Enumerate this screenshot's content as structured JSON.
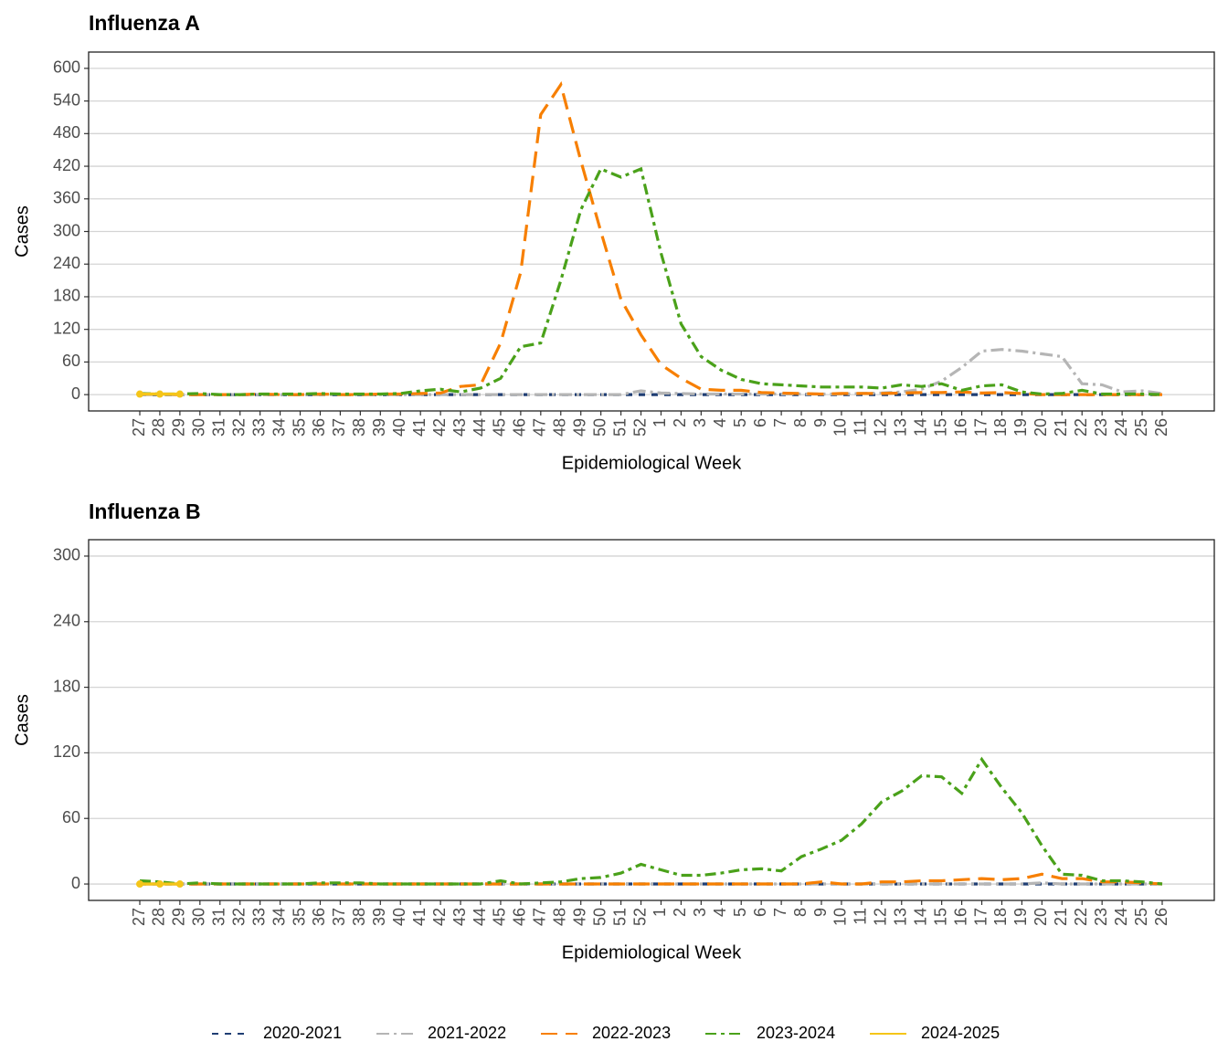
{
  "chart_data": [
    {
      "type": "line",
      "title": "Influenza A",
      "xlabel": "Epidemiological Week",
      "ylabel": "Cases",
      "categories": [
        "27",
        "28",
        "29",
        "30",
        "31",
        "32",
        "33",
        "34",
        "35",
        "36",
        "37",
        "38",
        "39",
        "40",
        "41",
        "42",
        "43",
        "44",
        "45",
        "46",
        "47",
        "48",
        "49",
        "50",
        "51",
        "52",
        "1",
        "2",
        "3",
        "4",
        "5",
        "6",
        "7",
        "8",
        "9",
        "10",
        "11",
        "12",
        "13",
        "14",
        "15",
        "16",
        "17",
        "18",
        "19",
        "20",
        "21",
        "22",
        "23",
        "24",
        "25",
        "26"
      ],
      "ylim": [
        -30,
        630
      ],
      "yticks": [
        0,
        60,
        120,
        180,
        240,
        300,
        360,
        420,
        480,
        540,
        600
      ],
      "grid": true,
      "series": [
        {
          "name": "2020-2021",
          "color": "#1f3e73",
          "linestyle": "dashed",
          "values": [
            0,
            0,
            0,
            0,
            0,
            0,
            0,
            0,
            0,
            0,
            0,
            0,
            0,
            0,
            0,
            0,
            0,
            0,
            0,
            0,
            0,
            0,
            0,
            0,
            0,
            0,
            0,
            0,
            0,
            0,
            0,
            0,
            0,
            0,
            0,
            0,
            0,
            0,
            0,
            0,
            0,
            0,
            0,
            0,
            0,
            0,
            0,
            0,
            0,
            0,
            0,
            0
          ]
        },
        {
          "name": "2021-2022",
          "color": "#b5b5b5",
          "linestyle": "dotdash",
          "values": [
            0,
            0,
            0,
            0,
            0,
            0,
            0,
            0,
            0,
            0,
            0,
            0,
            0,
            0,
            0,
            0,
            0,
            0,
            0,
            0,
            0,
            0,
            0,
            0,
            0,
            7,
            3,
            2,
            1,
            1,
            1,
            1,
            1,
            1,
            1,
            1,
            2,
            3,
            5,
            10,
            25,
            50,
            80,
            83,
            80,
            75,
            70,
            20,
            18,
            5,
            7,
            2
          ]
        },
        {
          "name": "2022-2023",
          "color": "#f77f00",
          "linestyle": "longdash",
          "values": [
            1,
            1,
            0,
            0,
            0,
            0,
            1,
            0,
            0,
            1,
            0,
            0,
            1,
            1,
            2,
            3,
            15,
            18,
            95,
            225,
            515,
            570,
            430,
            300,
            175,
            110,
            55,
            30,
            10,
            8,
            8,
            4,
            3,
            2,
            1,
            2,
            2,
            2,
            3,
            4,
            4,
            5,
            3,
            4,
            2,
            0,
            0,
            0,
            0,
            0,
            0,
            0
          ]
        },
        {
          "name": "2023-2024",
          "color": "#4aa11a",
          "linestyle": "twodash",
          "values": [
            2,
            1,
            1,
            2,
            0,
            0,
            1,
            1,
            1,
            2,
            1,
            1,
            1,
            2,
            7,
            10,
            5,
            12,
            30,
            88,
            95,
            210,
            340,
            415,
            400,
            415,
            260,
            130,
            70,
            45,
            28,
            20,
            18,
            16,
            14,
            14,
            14,
            12,
            18,
            15,
            20,
            8,
            16,
            18,
            5,
            1,
            2,
            8,
            1,
            1,
            1,
            0
          ]
        },
        {
          "name": "2024-2025",
          "color": "#f5c518",
          "linestyle": "solid",
          "markers": true,
          "values": [
            1,
            1,
            1,
            null,
            null,
            null,
            null,
            null,
            null,
            null,
            null,
            null,
            null,
            null,
            null,
            null,
            null,
            null,
            null,
            null,
            null,
            null,
            null,
            null,
            null,
            null,
            null,
            null,
            null,
            null,
            null,
            null,
            null,
            null,
            null,
            null,
            null,
            null,
            null,
            null,
            null,
            null,
            null,
            null,
            null,
            null,
            null,
            null,
            null,
            null,
            null,
            null
          ]
        }
      ]
    },
    {
      "type": "line",
      "title": "Influenza B",
      "xlabel": "Epidemiological Week",
      "ylabel": "Cases",
      "categories": [
        "27",
        "28",
        "29",
        "30",
        "31",
        "32",
        "33",
        "34",
        "35",
        "36",
        "37",
        "38",
        "39",
        "40",
        "41",
        "42",
        "43",
        "44",
        "45",
        "46",
        "47",
        "48",
        "49",
        "50",
        "51",
        "52",
        "1",
        "2",
        "3",
        "4",
        "5",
        "6",
        "7",
        "8",
        "9",
        "10",
        "11",
        "12",
        "13",
        "14",
        "15",
        "16",
        "17",
        "18",
        "19",
        "20",
        "21",
        "22",
        "23",
        "24",
        "25",
        "26"
      ],
      "ylim": [
        -15,
        315
      ],
      "yticks": [
        0,
        60,
        120,
        180,
        240,
        300
      ],
      "grid": true,
      "series": [
        {
          "name": "2020-2021",
          "color": "#1f3e73",
          "linestyle": "dashed",
          "values": [
            0,
            0,
            0,
            0,
            0,
            0,
            0,
            0,
            0,
            0,
            0,
            0,
            0,
            0,
            0,
            0,
            0,
            0,
            0,
            0,
            0,
            0,
            0,
            0,
            0,
            0,
            0,
            0,
            0,
            0,
            0,
            0,
            0,
            0,
            0,
            0,
            0,
            0,
            0,
            0,
            0,
            0,
            0,
            0,
            0,
            0,
            0,
            0,
            0,
            0,
            0,
            0
          ]
        },
        {
          "name": "2021-2022",
          "color": "#b5b5b5",
          "linestyle": "dotdash",
          "values": [
            0,
            0,
            0,
            0,
            0,
            0,
            0,
            0,
            0,
            0,
            0,
            0,
            0,
            0,
            0,
            0,
            0,
            0,
            0,
            0,
            0,
            0,
            0,
            0,
            0,
            0,
            0,
            0,
            0,
            0,
            0,
            0,
            0,
            0,
            0,
            0,
            0,
            0,
            0,
            0,
            0,
            0,
            0,
            0,
            0,
            1,
            0,
            0,
            0,
            0,
            0,
            0
          ]
        },
        {
          "name": "2022-2023",
          "color": "#f77f00",
          "linestyle": "longdash",
          "values": [
            0,
            0,
            0,
            0,
            0,
            0,
            0,
            0,
            0,
            0,
            0,
            0,
            0,
            0,
            0,
            0,
            0,
            0,
            0,
            0,
            0,
            0,
            0,
            0,
            0,
            0,
            0,
            0,
            0,
            0,
            0,
            0,
            0,
            0,
            2,
            0,
            0,
            2,
            2,
            3,
            3,
            4,
            5,
            4,
            5,
            9,
            5,
            5,
            2,
            2,
            1,
            0
          ]
        },
        {
          "name": "2023-2024",
          "color": "#4aa11a",
          "linestyle": "twodash",
          "values": [
            3,
            2,
            0,
            1,
            0,
            0,
            0,
            0,
            0,
            1,
            1,
            1,
            0,
            0,
            0,
            0,
            0,
            0,
            3,
            0,
            1,
            2,
            5,
            6,
            10,
            18,
            13,
            8,
            8,
            10,
            13,
            14,
            12,
            25,
            32,
            40,
            55,
            75,
            85,
            99,
            98,
            83,
            114,
            88,
            65,
            35,
            9,
            8,
            3,
            3,
            2,
            0
          ]
        },
        {
          "name": "2024-2025",
          "color": "#f5c518",
          "linestyle": "solid",
          "markers": true,
          "values": [
            0,
            0,
            0,
            null,
            null,
            null,
            null,
            null,
            null,
            null,
            null,
            null,
            null,
            null,
            null,
            null,
            null,
            null,
            null,
            null,
            null,
            null,
            null,
            null,
            null,
            null,
            null,
            null,
            null,
            null,
            null,
            null,
            null,
            null,
            null,
            null,
            null,
            null,
            null,
            null,
            null,
            null,
            null,
            null,
            null,
            null,
            null,
            null,
            null,
            null,
            null,
            null
          ]
        }
      ]
    }
  ]
}
